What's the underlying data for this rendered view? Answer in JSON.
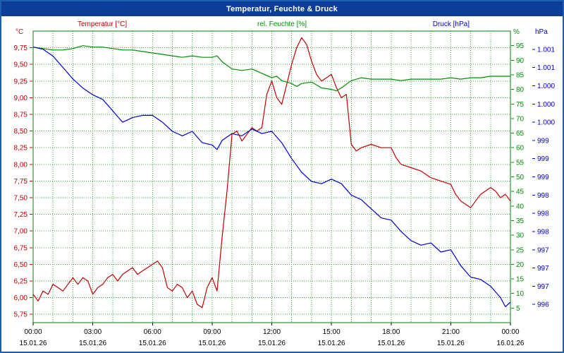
{
  "window": {
    "title": "Temperatur, Feuchte & Druck"
  },
  "chart_data": {
    "type": "line",
    "title": "Temperatur, Feuchte & Druck",
    "grid_color": "#33aa33",
    "plot_border_color": "#008000",
    "x_axis": {
      "range_hours": [
        0,
        24
      ],
      "grid_interval_hours": 1,
      "tick_labels": [
        "00:00",
        "03:00",
        "06:00",
        "09:00",
        "12:00",
        "15:00",
        "18:00",
        "21:00",
        "00:00"
      ],
      "date_labels": [
        "15.01.26",
        "15.01.26",
        "15.01.26",
        "15.01.26",
        "15.01.26",
        "15.01.26",
        "15.01.26",
        "15.01.26",
        "16.01.26"
      ]
    },
    "y_axes": {
      "temperature": {
        "title": "Temperatur [°C]",
        "unit": "°C",
        "color": "#c00000",
        "min": 5.625,
        "max": 10.0,
        "tick_values": [
          9.75,
          9.5,
          9.25,
          9.0,
          8.75,
          8.5,
          8.25,
          8.0,
          7.75,
          7.5,
          7.25,
          7.0,
          6.75,
          6.5,
          6.25,
          6.0,
          5.75
        ],
        "tick_labels": [
          "9,75",
          "9,50",
          "9,25",
          "9,00",
          "8,75",
          "8,50",
          "8,25",
          "8,00",
          "7,75",
          "7,50",
          "7,25",
          "7,00",
          "6,75",
          "6,50",
          "6,25",
          "6,00",
          "5,75"
        ]
      },
      "humidity": {
        "title": "rel. Feuchte [%]",
        "unit": "%",
        "color": "#008f00",
        "min": 0,
        "max": 100,
        "tick_values": [
          95,
          90,
          85,
          80,
          75,
          70,
          65,
          60,
          55,
          50,
          45,
          40,
          35,
          30,
          25,
          20,
          15,
          10,
          5
        ],
        "tick_labels": [
          "95",
          "90",
          "85",
          "80",
          "75",
          "70",
          "65",
          "60",
          "55",
          "50",
          "45",
          "40",
          "35",
          "30",
          "25",
          "20",
          "15",
          "10",
          "5"
        ]
      },
      "pressure": {
        "title": "Druck [hPa]",
        "unit": "hPa",
        "color": "#0000c8",
        "min": 995.4,
        "max": 1001.8,
        "tick_values": [
          1001.4,
          1001.0,
          1000.6,
          1000.2,
          999.8,
          999.4,
          999.0,
          998.6,
          998.2,
          997.8,
          997.4,
          997.0,
          996.6,
          996.2,
          995.8
        ],
        "tick_labels": [
          "1.001",
          "1.001",
          "1.000",
          "1.000",
          "1.000",
          "999",
          "999",
          "999",
          "998",
          "998",
          "998",
          "997",
          "997",
          "997",
          "996"
        ]
      }
    },
    "series": [
      {
        "name": "Temperatur",
        "axis": "temperature",
        "color": "#c00000",
        "x": [
          0,
          0.25,
          0.5,
          0.75,
          1,
          1.25,
          1.5,
          1.75,
          2,
          2.25,
          2.5,
          2.75,
          3,
          3.25,
          3.5,
          3.75,
          4,
          4.25,
          4.5,
          4.75,
          5,
          5.25,
          5.5,
          5.75,
          6,
          6.25,
          6.5,
          6.75,
          7,
          7.25,
          7.5,
          7.75,
          8,
          8.25,
          8.5,
          8.75,
          9,
          9.25,
          9.5,
          9.75,
          10,
          10.25,
          10.5,
          10.75,
          11,
          11.25,
          11.5,
          11.75,
          12,
          12.25,
          12.5,
          12.75,
          13,
          13.25,
          13.5,
          13.75,
          14,
          14.25,
          14.5,
          14.75,
          15,
          15.25,
          15.5,
          15.75,
          16,
          16.25,
          16.5,
          17,
          17.5,
          18,
          18.25,
          18.5,
          19,
          19.5,
          20,
          20.5,
          21,
          21.25,
          21.5,
          21.75,
          22,
          22.25,
          22.5,
          23,
          23.25,
          23.5,
          23.75,
          24
        ],
        "values": [
          6.05,
          5.95,
          6.1,
          6.05,
          6.2,
          6.15,
          6.1,
          6.2,
          6.3,
          6.2,
          6.3,
          6.25,
          6.05,
          6.15,
          6.2,
          6.3,
          6.35,
          6.25,
          6.35,
          6.4,
          6.45,
          6.35,
          6.4,
          6.45,
          6.5,
          6.55,
          6.45,
          6.15,
          6.1,
          6.2,
          6.15,
          6.0,
          6.1,
          5.9,
          5.85,
          6.15,
          6.3,
          6.1,
          6.9,
          7.6,
          8.45,
          8.5,
          8.35,
          8.45,
          8.55,
          8.5,
          8.55,
          9.05,
          9.25,
          9.0,
          8.9,
          9.2,
          9.5,
          9.75,
          9.9,
          9.8,
          9.55,
          9.35,
          9.25,
          9.3,
          9.35,
          9.15,
          9.0,
          9.05,
          8.3,
          8.2,
          8.25,
          8.3,
          8.25,
          8.25,
          8.1,
          8.0,
          7.95,
          7.9,
          7.8,
          7.75,
          7.7,
          7.55,
          7.45,
          7.4,
          7.35,
          7.45,
          7.55,
          7.65,
          7.6,
          7.5,
          7.55,
          7.45
        ]
      },
      {
        "name": "rel. Feuchte",
        "axis": "humidity",
        "color": "#008f00",
        "x": [
          0,
          0.5,
          1,
          1.5,
          2,
          2.5,
          3,
          3.5,
          4,
          4.5,
          5,
          5.5,
          6,
          6.5,
          7,
          7.5,
          8,
          8.5,
          9,
          9.25,
          9.5,
          10,
          10.5,
          11,
          11.5,
          12,
          12.25,
          12.5,
          13,
          13.25,
          13.5,
          14,
          14.25,
          14.5,
          15,
          15.25,
          15.5,
          16,
          16.5,
          17,
          17.5,
          18,
          18.5,
          19,
          19.5,
          20,
          20.5,
          21,
          21.5,
          22,
          22.5,
          23,
          23.5,
          24
        ],
        "values": [
          94.5,
          94,
          93.5,
          93.5,
          94,
          95,
          94.5,
          94.5,
          94,
          93.5,
          93.5,
          93,
          92.5,
          92,
          91.5,
          91,
          91.5,
          91,
          91,
          91.5,
          89.5,
          87,
          86.5,
          87,
          85.5,
          84,
          84.5,
          83,
          82,
          81,
          82,
          82.5,
          81.5,
          80.5,
          80,
          79.5,
          80.5,
          83,
          84,
          83.5,
          83.5,
          83.5,
          83,
          83.5,
          83.5,
          83.5,
          83.5,
          84,
          83.5,
          84,
          84,
          84.5,
          84.5,
          84.5
        ]
      },
      {
        "name": "Druck",
        "axis": "pressure",
        "color": "#0000c8",
        "x": [
          0,
          0.5,
          1,
          1.5,
          2,
          2.5,
          3,
          3.5,
          4,
          4.5,
          5,
          5.5,
          6,
          6.5,
          7,
          7.5,
          8,
          8.5,
          9,
          9.25,
          9.5,
          10,
          10.5,
          11,
          11.5,
          12,
          12.5,
          13,
          13.5,
          14,
          14.5,
          15,
          15.5,
          16,
          16.5,
          17,
          17.5,
          18,
          18.5,
          19,
          19.5,
          20,
          20.5,
          21,
          21.5,
          22,
          22.5,
          23,
          23.5,
          23.75,
          24
        ],
        "values": [
          1001.45,
          1001.4,
          1001.25,
          1001.0,
          1000.75,
          1000.55,
          1000.4,
          1000.3,
          1000.05,
          999.8,
          999.9,
          999.95,
          999.95,
          999.8,
          999.6,
          999.5,
          999.6,
          999.35,
          999.3,
          999.2,
          999.4,
          999.55,
          999.5,
          999.65,
          999.55,
          999.6,
          999.35,
          999.0,
          998.7,
          998.5,
          998.45,
          998.55,
          998.45,
          998.2,
          998.1,
          997.9,
          997.7,
          997.65,
          997.4,
          997.2,
          997.1,
          997.15,
          996.95,
          997.0,
          996.65,
          996.4,
          996.35,
          996.2,
          995.95,
          995.75,
          995.85
        ]
      }
    ]
  }
}
